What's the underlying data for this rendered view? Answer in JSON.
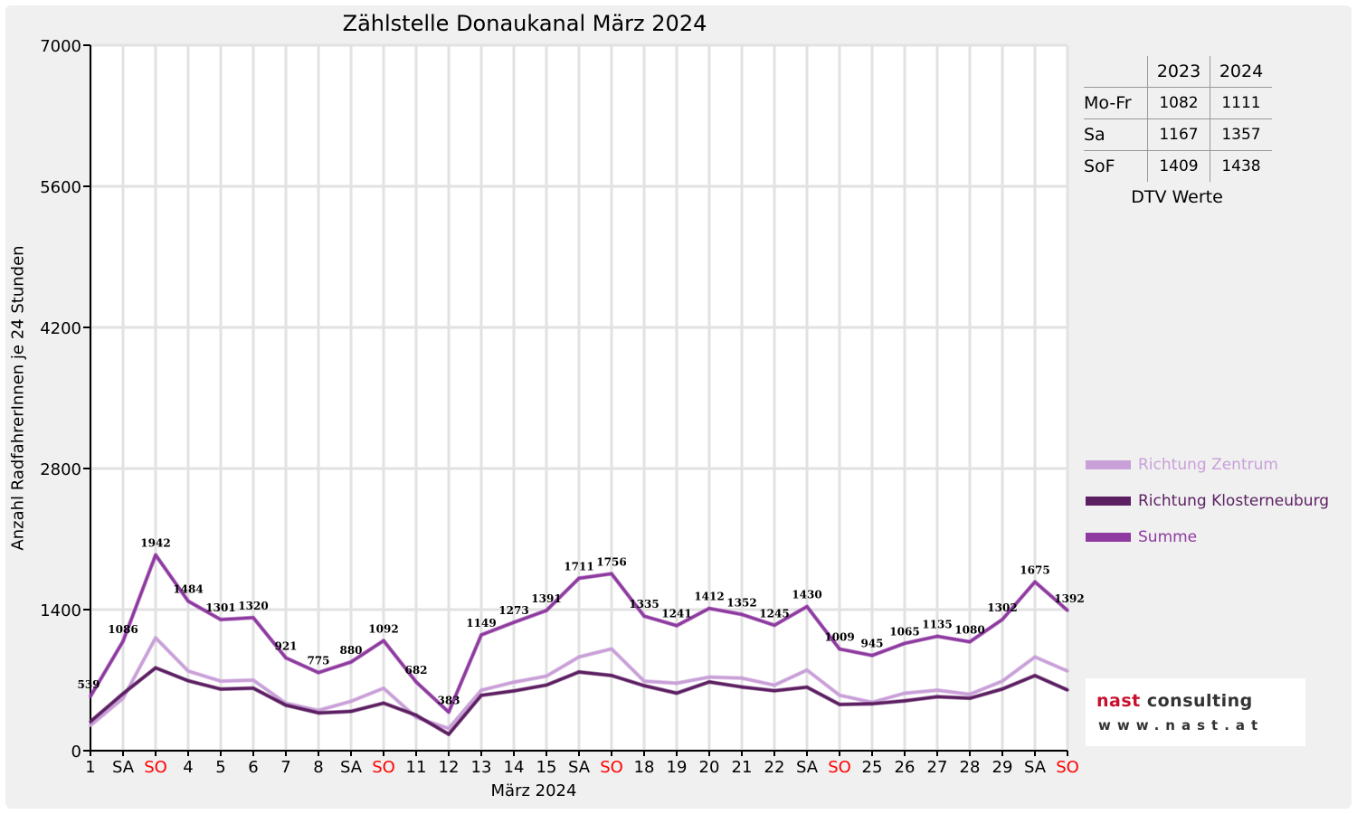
{
  "chart_data": {
    "type": "line",
    "title": "Zählstelle Donaukanal März 2024",
    "xlabel": "März 2024",
    "ylabel": "Anzahl RadfahrerInnen je 24 Stunden",
    "ylim": [
      0,
      7000
    ],
    "yticks": [
      "0",
      "1400",
      "2800",
      "4200",
      "5600",
      "7000"
    ],
    "grid": true,
    "categories": [
      "1",
      "SA",
      "SO",
      "4",
      "5",
      "6",
      "7",
      "8",
      "SA",
      "SO",
      "11",
      "12",
      "13",
      "14",
      "15",
      "SA",
      "SO",
      "18",
      "19",
      "20",
      "21",
      "22",
      "SA",
      "SO",
      "25",
      "26",
      "27",
      "28",
      "29",
      "SA",
      "SO"
    ],
    "highlight_categories": [
      "SO"
    ],
    "highlight_color": "#ff0000",
    "series": [
      {
        "name": "Richtung Zentrum",
        "color": "#c9a0d8",
        "values": [
          250,
          520,
          1120,
          790,
          690,
          700,
          470,
          400,
          490,
          620,
          330,
          220,
          600,
          680,
          740,
          930,
          1010,
          690,
          670,
          730,
          720,
          650,
          800,
          550,
          480,
          570,
          600,
          560,
          690,
          930,
          790
        ]
      },
      {
        "name": "Richtung Klosterneuburg",
        "color": "#5c1f62",
        "values": [
          289,
          566,
          822,
          694,
          611,
          620,
          451,
          375,
          390,
          472,
          352,
          163,
          549,
          593,
          651,
          781,
          746,
          645,
          571,
          682,
          632,
          595,
          630,
          459,
          465,
          495,
          535,
          520,
          612,
          745,
          602
        ]
      },
      {
        "name": "Summe",
        "color": "#8e3aa0",
        "values": [
          539,
          1086,
          1942,
          1484,
          1301,
          1320,
          921,
          775,
          880,
          1092,
          682,
          383,
          1149,
          1273,
          1391,
          1711,
          1756,
          1335,
          1241,
          1412,
          1352,
          1245,
          1430,
          1009,
          945,
          1065,
          1135,
          1080,
          1302,
          1675,
          1392
        ]
      }
    ],
    "data_labels": [
      "539",
      "1086",
      "1942",
      "1484",
      "1301",
      "1320",
      "921",
      "775",
      "880",
      "1092",
      "682",
      "383",
      "1149",
      "1273",
      "1391",
      "1711",
      "1756",
      "1335",
      "1241",
      "1412",
      "1352",
      "1245",
      "1430",
      "1009",
      "945",
      "1065",
      "1135",
      "1080",
      "1302",
      "1675",
      "1392"
    ],
    "legend_position": "right"
  },
  "dtv": {
    "years": [
      "2023",
      "2024"
    ],
    "rows": [
      {
        "label": "Mo-Fr",
        "v2023": "1082",
        "v2024": "1111"
      },
      {
        "label": "Sa",
        "v2023": "1167",
        "v2024": "1357"
      },
      {
        "label": "SoF",
        "v2023": "1409",
        "v2024": "1438"
      }
    ],
    "caption": "DTV Werte"
  },
  "logo": {
    "line1": "nast consulting",
    "line2": "www.nast.at",
    "accent": "#c8102e"
  }
}
